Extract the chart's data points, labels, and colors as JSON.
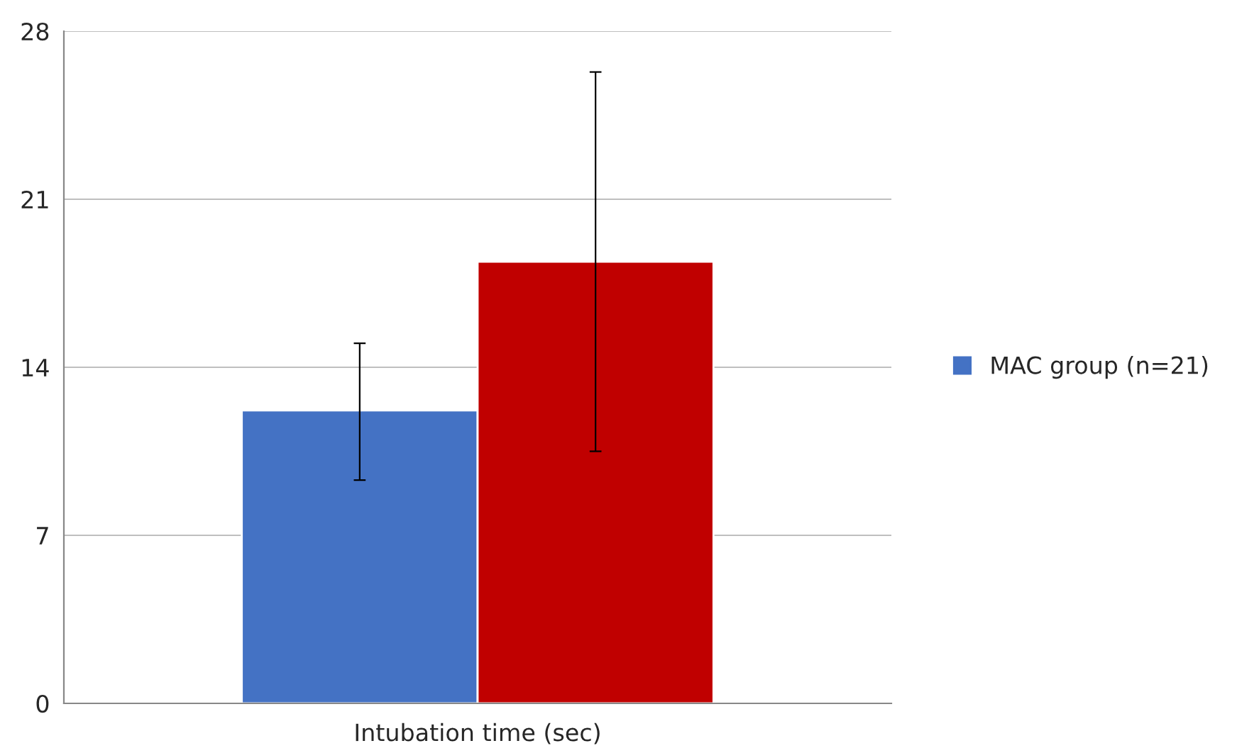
{
  "chart_data": {
    "type": "bar",
    "categories": [
      "Intubation time (sec)"
    ],
    "series": [
      {
        "name": "MAC group (n=21)",
        "color": "#4472c4",
        "values": [
          12.2
        ],
        "errors": [
          [
            9.3,
            15.0
          ]
        ]
      },
      {
        "color": "#c00000",
        "values": [
          18.4
        ],
        "errors": [
          [
            10.5,
            26.3
          ]
        ]
      }
    ],
    "ylim": [
      0,
      28
    ],
    "yticks": [
      0,
      7,
      14,
      21,
      28
    ],
    "grid": "y",
    "legend": "right"
  }
}
